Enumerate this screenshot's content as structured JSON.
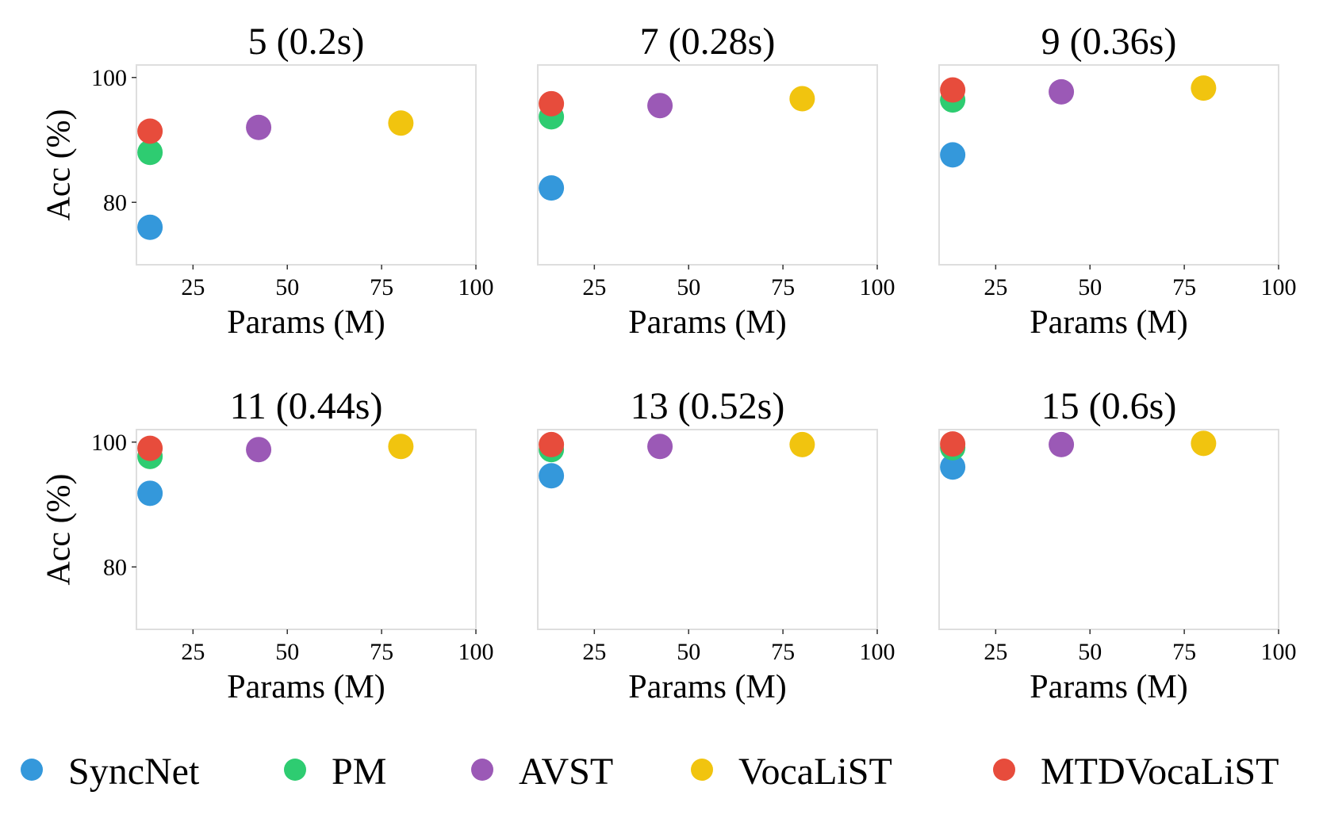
{
  "chart_data": [
    {
      "type": "scatter",
      "title": "5 (0.2s)",
      "xlabel": "Params (M)",
      "ylabel": "Acc (%)",
      "xlim": [
        10,
        100
      ],
      "ylim": [
        70,
        102
      ],
      "xticks": [
        "25",
        "50",
        "75",
        "100"
      ],
      "yticks": [
        "80",
        "100"
      ],
      "grid": false,
      "series": [
        {
          "name": "SyncNet",
          "x": [
            13.6
          ],
          "y": [
            76.0
          ]
        },
        {
          "name": "PM",
          "x": [
            13.6
          ],
          "y": [
            88.0
          ]
        },
        {
          "name": "AVST",
          "x": [
            42.4
          ],
          "y": [
            92.0
          ]
        },
        {
          "name": "VocaLiST",
          "x": [
            80.1
          ],
          "y": [
            92.7
          ]
        },
        {
          "name": "MTDVocaLiST",
          "x": [
            13.6
          ],
          "y": [
            91.4
          ]
        }
      ]
    },
    {
      "type": "scatter",
      "title": "7 (0.28s)",
      "xlabel": "Params (M)",
      "ylabel": "",
      "xlim": [
        10,
        100
      ],
      "ylim": [
        70,
        102
      ],
      "xticks": [
        "25",
        "50",
        "75",
        "100"
      ],
      "yticks": [],
      "grid": false,
      "series": [
        {
          "name": "SyncNet",
          "x": [
            13.6
          ],
          "y": [
            82.3
          ]
        },
        {
          "name": "PM",
          "x": [
            13.6
          ],
          "y": [
            93.7
          ]
        },
        {
          "name": "AVST",
          "x": [
            42.4
          ],
          "y": [
            95.5
          ]
        },
        {
          "name": "VocaLiST",
          "x": [
            80.1
          ],
          "y": [
            96.6
          ]
        },
        {
          "name": "MTDVocaLiST",
          "x": [
            13.6
          ],
          "y": [
            95.8
          ]
        }
      ]
    },
    {
      "type": "scatter",
      "title": "9 (0.36s)",
      "xlabel": "Params (M)",
      "ylabel": "",
      "xlim": [
        10,
        100
      ],
      "ylim": [
        70,
        102
      ],
      "xticks": [
        "25",
        "50",
        "75",
        "100"
      ],
      "yticks": [],
      "grid": false,
      "series": [
        {
          "name": "SyncNet",
          "x": [
            13.6
          ],
          "y": [
            87.6
          ]
        },
        {
          "name": "PM",
          "x": [
            13.6
          ],
          "y": [
            96.4
          ]
        },
        {
          "name": "AVST",
          "x": [
            42.4
          ],
          "y": [
            97.7
          ]
        },
        {
          "name": "VocaLiST",
          "x": [
            80.1
          ],
          "y": [
            98.3
          ]
        },
        {
          "name": "MTDVocaLiST",
          "x": [
            13.6
          ],
          "y": [
            98.0
          ]
        }
      ]
    },
    {
      "type": "scatter",
      "title": "11 (0.44s)",
      "xlabel": "Params (M)",
      "ylabel": "Acc (%)",
      "xlim": [
        10,
        100
      ],
      "ylim": [
        70,
        102
      ],
      "xticks": [
        "25",
        "50",
        "75",
        "100"
      ],
      "yticks": [
        "80",
        "100"
      ],
      "grid": false,
      "series": [
        {
          "name": "SyncNet",
          "x": [
            13.6
          ],
          "y": [
            91.8
          ]
        },
        {
          "name": "PM",
          "x": [
            13.6
          ],
          "y": [
            97.7
          ]
        },
        {
          "name": "AVST",
          "x": [
            42.4
          ],
          "y": [
            98.8
          ]
        },
        {
          "name": "VocaLiST",
          "x": [
            80.1
          ],
          "y": [
            99.3
          ]
        },
        {
          "name": "MTDVocaLiST",
          "x": [
            13.6
          ],
          "y": [
            99.0
          ]
        }
      ]
    },
    {
      "type": "scatter",
      "title": "13 (0.52s)",
      "xlabel": "Params (M)",
      "ylabel": "",
      "xlim": [
        10,
        100
      ],
      "ylim": [
        70,
        102
      ],
      "xticks": [
        "25",
        "50",
        "75",
        "100"
      ],
      "yticks": [],
      "grid": false,
      "series": [
        {
          "name": "SyncNet",
          "x": [
            13.6
          ],
          "y": [
            94.6
          ]
        },
        {
          "name": "PM",
          "x": [
            13.6
          ],
          "y": [
            98.8
          ]
        },
        {
          "name": "AVST",
          "x": [
            42.4
          ],
          "y": [
            99.3
          ]
        },
        {
          "name": "VocaLiST",
          "x": [
            80.1
          ],
          "y": [
            99.6
          ]
        },
        {
          "name": "MTDVocaLiST",
          "x": [
            13.6
          ],
          "y": [
            99.6
          ]
        }
      ]
    },
    {
      "type": "scatter",
      "title": "15 (0.6s)",
      "xlabel": "Params (M)",
      "ylabel": "",
      "xlim": [
        10,
        100
      ],
      "ylim": [
        70,
        102
      ],
      "xticks": [
        "25",
        "50",
        "75",
        "100"
      ],
      "yticks": [],
      "grid": false,
      "series": [
        {
          "name": "SyncNet",
          "x": [
            13.6
          ],
          "y": [
            96.0
          ]
        },
        {
          "name": "PM",
          "x": [
            13.6
          ],
          "y": [
            99.1
          ]
        },
        {
          "name": "AVST",
          "x": [
            42.4
          ],
          "y": [
            99.6
          ]
        },
        {
          "name": "VocaLiST",
          "x": [
            80.1
          ],
          "y": [
            99.8
          ]
        },
        {
          "name": "MTDVocaLiST",
          "x": [
            13.6
          ],
          "y": [
            99.7
          ]
        }
      ]
    }
  ],
  "legend": {
    "placement": "bottom",
    "entries": [
      {
        "name": "SyncNet",
        "color": "#3498db"
      },
      {
        "name": "PM",
        "color": "#2ecc71"
      },
      {
        "name": "AVST",
        "color": "#9b59b6"
      },
      {
        "name": "VocaLiST",
        "color": "#f1c40f"
      },
      {
        "name": "MTDVocaLiST",
        "color": "#e74c3c"
      }
    ]
  }
}
